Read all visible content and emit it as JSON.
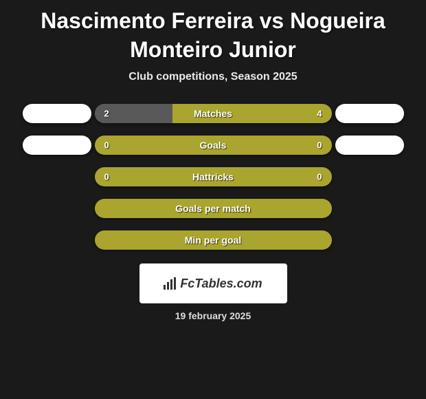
{
  "title": "Nascimento Ferreira vs Nogueira Monteiro Junior",
  "subtitle": "Club competitions, Season 2025",
  "colors": {
    "bg": "#1a1a1a",
    "olive": "#a9a52e",
    "olive_light": "#b6b23c",
    "gray_bar": "#595959",
    "badge_left": "#ffffff",
    "badge_right": "#ffffff",
    "text": "#ffffff"
  },
  "stats": [
    {
      "label": "Matches",
      "left_value": "2",
      "right_value": "4",
      "left_pct": 33,
      "right_pct": 67,
      "left_color": "#595959",
      "right_color": "#a9a52e",
      "show_left_badge": true,
      "show_right_badge": true
    },
    {
      "label": "Goals",
      "left_value": "0",
      "right_value": "0",
      "left_pct": 0,
      "right_pct": 100,
      "left_color": "#595959",
      "right_color": "#a9a52e",
      "show_left_badge": true,
      "show_right_badge": true
    },
    {
      "label": "Hattricks",
      "left_value": "0",
      "right_value": "0",
      "left_pct": 0,
      "right_pct": 100,
      "left_color": "#595959",
      "right_color": "#a9a52e",
      "show_left_badge": false,
      "show_right_badge": false
    },
    {
      "label": "Goals per match",
      "left_value": "",
      "right_value": "",
      "left_pct": 0,
      "right_pct": 100,
      "left_color": "#595959",
      "right_color": "#a9a52e",
      "show_left_badge": false,
      "show_right_badge": false
    },
    {
      "label": "Min per goal",
      "left_value": "",
      "right_value": "",
      "left_pct": 0,
      "right_pct": 100,
      "left_color": "#595959",
      "right_color": "#a9a52e",
      "show_left_badge": false,
      "show_right_badge": false
    }
  ],
  "brand": "FcTables.com",
  "date": "19 february 2025"
}
